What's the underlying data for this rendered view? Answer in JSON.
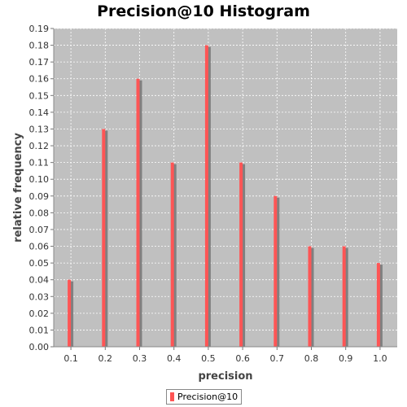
{
  "chart_data": {
    "type": "bar",
    "title": "Precision@10 Histogram",
    "xlabel": "precision",
    "ylabel": "relative frequency",
    "categories": [
      "0.1",
      "0.2",
      "0.3",
      "0.4",
      "0.5",
      "0.6",
      "0.7",
      "0.8",
      "0.9",
      "1.0"
    ],
    "series": [
      {
        "name": "Precision@10",
        "values": [
          0.04,
          0.13,
          0.16,
          0.11,
          0.18,
          0.11,
          0.09,
          0.06,
          0.06,
          0.05
        ]
      }
    ],
    "ylim": [
      0,
      0.19
    ],
    "yticks": [
      "0.00",
      "0.01",
      "0.02",
      "0.03",
      "0.04",
      "0.05",
      "0.06",
      "0.07",
      "0.08",
      "0.09",
      "0.10",
      "0.11",
      "0.12",
      "0.13",
      "0.14",
      "0.15",
      "0.16",
      "0.17",
      "0.18",
      "0.19"
    ],
    "grid": true,
    "legend_position": "bottom",
    "colors": {
      "plot_background": "#c0c0c0",
      "bar": "#ff5555",
      "bar_shadow": "#808080",
      "grid": "#ffffff"
    }
  }
}
